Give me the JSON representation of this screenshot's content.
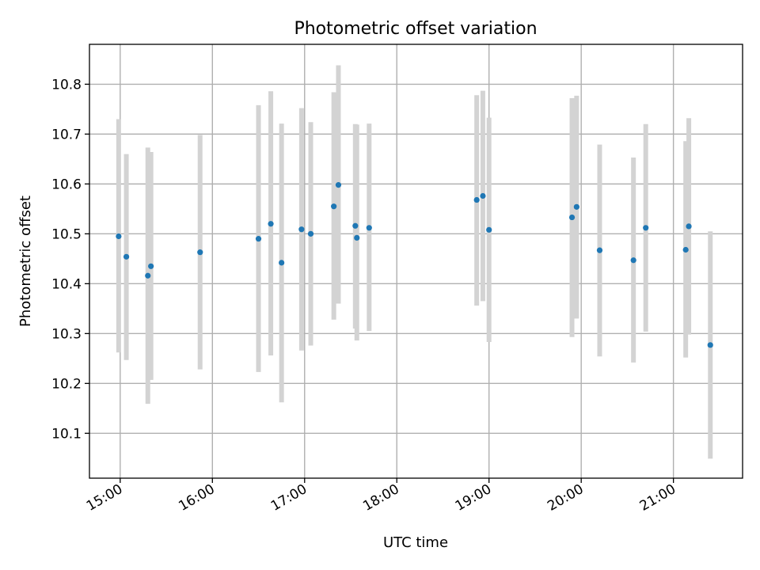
{
  "chart_data": {
    "type": "scatter",
    "title": "Photometric offset variation",
    "xlabel": "UTC time",
    "ylabel": "Photometric offset",
    "xlim": [
      "14:40",
      "21:45"
    ],
    "ylim": [
      10.01,
      10.88
    ],
    "x_ticks": [
      "15:00",
      "16:00",
      "17:00",
      "18:00",
      "19:00",
      "20:00",
      "21:00"
    ],
    "y_ticks": [
      "10.1",
      "10.2",
      "10.3",
      "10.4",
      "10.5",
      "10.6",
      "10.7",
      "10.8"
    ],
    "grid": true,
    "marker_color": "#1f77b4",
    "errorbar_color": "#d3d3d3",
    "series": [
      {
        "points": [
          {
            "time": "14:59",
            "y": 10.495,
            "low": 10.262,
            "high": 10.73
          },
          {
            "time": "15:04",
            "y": 10.454,
            "low": 10.247,
            "high": 10.66
          },
          {
            "time": "15:18",
            "y": 10.416,
            "low": 10.159,
            "high": 10.673
          },
          {
            "time": "15:20",
            "y": 10.435,
            "low": 10.207,
            "high": 10.664
          },
          {
            "time": "15:52",
            "y": 10.463,
            "low": 10.228,
            "high": 10.698
          },
          {
            "time": "16:30",
            "y": 10.49,
            "low": 10.223,
            "high": 10.758
          },
          {
            "time": "16:38",
            "y": 10.52,
            "low": 10.256,
            "high": 10.786
          },
          {
            "time": "16:45",
            "y": 10.442,
            "low": 10.162,
            "high": 10.721
          },
          {
            "time": "16:58",
            "y": 10.509,
            "low": 10.266,
            "high": 10.752
          },
          {
            "time": "17:04",
            "y": 10.5,
            "low": 10.276,
            "high": 10.724
          },
          {
            "time": "17:19",
            "y": 10.555,
            "low": 10.328,
            "high": 10.784
          },
          {
            "time": "17:22",
            "y": 10.598,
            "low": 10.36,
            "high": 10.838
          },
          {
            "time": "17:33",
            "y": 10.516,
            "low": 10.31,
            "high": 10.72
          },
          {
            "time": "17:34",
            "y": 10.492,
            "low": 10.286,
            "high": 10.719
          },
          {
            "time": "17:42",
            "y": 10.512,
            "low": 10.305,
            "high": 10.721
          },
          {
            "time": "18:52",
            "y": 10.568,
            "low": 10.356,
            "high": 10.778
          },
          {
            "time": "18:56",
            "y": 10.576,
            "low": 10.365,
            "high": 10.787
          },
          {
            "time": "19:00",
            "y": 10.508,
            "low": 10.283,
            "high": 10.733
          },
          {
            "time": "19:54",
            "y": 10.533,
            "low": 10.293,
            "high": 10.772
          },
          {
            "time": "19:57",
            "y": 10.554,
            "low": 10.33,
            "high": 10.777
          },
          {
            "time": "20:12",
            "y": 10.467,
            "low": 10.254,
            "high": 10.679
          },
          {
            "time": "20:34",
            "y": 10.447,
            "low": 10.242,
            "high": 10.653
          },
          {
            "time": "20:42",
            "y": 10.512,
            "low": 10.304,
            "high": 10.72
          },
          {
            "time": "21:08",
            "y": 10.468,
            "low": 10.252,
            "high": 10.686
          },
          {
            "time": "21:10",
            "y": 10.515,
            "low": 10.298,
            "high": 10.732
          },
          {
            "time": "21:24",
            "y": 10.277,
            "low": 10.049,
            "high": 10.505
          }
        ]
      }
    ]
  }
}
